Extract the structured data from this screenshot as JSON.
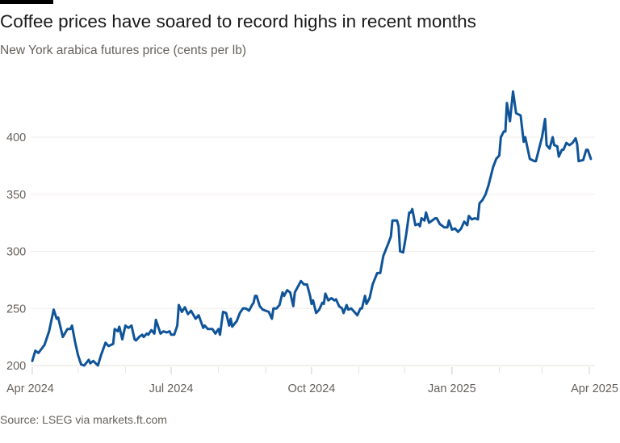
{
  "header": {
    "title": "Coffee prices have soared to record highs in recent months",
    "subtitle": "New York arabica futures price (cents per lb)"
  },
  "footer": {
    "source": "Source: LSEG via markets.ft.com"
  },
  "colors": {
    "line": "#0f5499",
    "grid": "#f0ece8",
    "text": "#66605c"
  },
  "chart_data": {
    "type": "line",
    "title": "Coffee prices have soared to record highs in recent months",
    "subtitle": "New York arabica futures price (cents per lb)",
    "xlabel": "",
    "ylabel": "",
    "xlim": [
      "2024-04-01",
      "2025-04-01"
    ],
    "ylim": [
      200,
      440
    ],
    "yticks": [
      200,
      250,
      300,
      350,
      400
    ],
    "xticks": [
      {
        "date": "2024-04-01",
        "label": "Apr 2024"
      },
      {
        "date": "2024-07-01",
        "label": "Jul 2024"
      },
      {
        "date": "2024-10-01",
        "label": "Oct 2024"
      },
      {
        "date": "2025-01-01",
        "label": "Jan 2025"
      },
      {
        "date": "2025-04-01",
        "label": "Apr 2025"
      }
    ],
    "minor_ticks": "monthly",
    "grid": "horizontal",
    "series": [
      {
        "points": [
          [
            "2024-04-01",
            204
          ],
          [
            "2024-04-03",
            213
          ],
          [
            "2024-04-05",
            211
          ],
          [
            "2024-04-09",
            218
          ],
          [
            "2024-04-12",
            230
          ],
          [
            "2024-04-15",
            249
          ],
          [
            "2024-04-17",
            241
          ],
          [
            "2024-04-18",
            242
          ],
          [
            "2024-04-21",
            225
          ],
          [
            "2024-04-24",
            232
          ],
          [
            "2024-04-26",
            232
          ],
          [
            "2024-04-27",
            235
          ],
          [
            "2024-04-29",
            221
          ],
          [
            "2024-05-01",
            209
          ],
          [
            "2024-05-03",
            201
          ],
          [
            "2024-05-05",
            200
          ],
          [
            "2024-05-08",
            205
          ],
          [
            "2024-05-09",
            202
          ],
          [
            "2024-05-11",
            204
          ],
          [
            "2024-05-14",
            200
          ],
          [
            "2024-05-16",
            209
          ],
          [
            "2024-05-19",
            220
          ],
          [
            "2024-05-21",
            217
          ],
          [
            "2024-05-24",
            219
          ],
          [
            "2024-05-25",
            232
          ],
          [
            "2024-05-27",
            230
          ],
          [
            "2024-05-28",
            234
          ],
          [
            "2024-05-30",
            223
          ],
          [
            "2024-06-01",
            235
          ],
          [
            "2024-06-03",
            233
          ],
          [
            "2024-06-05",
            235
          ],
          [
            "2024-06-07",
            223
          ],
          [
            "2024-06-08",
            222
          ],
          [
            "2024-06-10",
            225
          ],
          [
            "2024-06-12",
            227
          ],
          [
            "2024-06-13",
            225
          ],
          [
            "2024-06-15",
            228
          ],
          [
            "2024-06-16",
            227
          ],
          [
            "2024-06-18",
            231
          ],
          [
            "2024-06-20",
            228
          ],
          [
            "2024-06-21",
            240
          ],
          [
            "2024-06-24",
            228
          ],
          [
            "2024-06-26",
            230
          ],
          [
            "2024-06-28",
            229
          ],
          [
            "2024-06-30",
            230
          ],
          [
            "2024-07-01",
            227
          ],
          [
            "2024-07-03",
            227
          ],
          [
            "2024-07-05",
            235
          ],
          [
            "2024-07-06",
            253
          ],
          [
            "2024-07-08",
            247
          ],
          [
            "2024-07-10",
            251
          ],
          [
            "2024-07-12",
            245
          ],
          [
            "2024-07-14",
            248
          ],
          [
            "2024-07-17",
            241
          ],
          [
            "2024-07-19",
            244
          ],
          [
            "2024-07-22",
            233
          ],
          [
            "2024-07-23",
            235
          ],
          [
            "2024-07-25",
            232
          ],
          [
            "2024-07-28",
            232
          ],
          [
            "2024-07-30",
            228
          ],
          [
            "2024-08-01",
            232
          ],
          [
            "2024-08-02",
            227
          ],
          [
            "2024-08-04",
            247
          ],
          [
            "2024-08-06",
            246
          ],
          [
            "2024-08-08",
            235
          ],
          [
            "2024-08-09",
            241
          ],
          [
            "2024-08-10",
            234
          ],
          [
            "2024-08-13",
            239
          ],
          [
            "2024-08-15",
            246
          ],
          [
            "2024-08-17",
            250
          ],
          [
            "2024-08-19",
            250
          ],
          [
            "2024-08-21",
            248
          ],
          [
            "2024-08-23",
            253
          ],
          [
            "2024-08-24",
            255
          ],
          [
            "2024-08-25",
            261
          ],
          [
            "2024-08-26",
            261
          ],
          [
            "2024-08-28",
            252
          ],
          [
            "2024-08-30",
            249
          ],
          [
            "2024-09-01",
            248
          ],
          [
            "2024-09-03",
            247
          ],
          [
            "2024-09-05",
            241
          ],
          [
            "2024-09-06",
            250
          ],
          [
            "2024-09-08",
            250
          ],
          [
            "2024-09-10",
            253
          ],
          [
            "2024-09-12",
            264
          ],
          [
            "2024-09-13",
            261
          ],
          [
            "2024-09-15",
            266
          ],
          [
            "2024-09-17",
            264
          ],
          [
            "2024-09-19",
            252
          ],
          [
            "2024-09-20",
            264
          ],
          [
            "2024-09-22",
            269
          ],
          [
            "2024-09-24",
            274
          ],
          [
            "2024-09-26",
            271
          ],
          [
            "2024-09-28",
            271
          ],
          [
            "2024-09-30",
            261
          ],
          [
            "2024-10-01",
            254
          ],
          [
            "2024-10-02",
            257
          ],
          [
            "2024-10-04",
            246
          ],
          [
            "2024-10-06",
            249
          ],
          [
            "2024-10-08",
            255
          ],
          [
            "2024-10-09",
            254
          ],
          [
            "2024-10-10",
            263
          ],
          [
            "2024-10-12",
            257
          ],
          [
            "2024-10-14",
            259
          ],
          [
            "2024-10-16",
            257
          ],
          [
            "2024-10-17",
            258
          ],
          [
            "2024-10-19",
            252
          ],
          [
            "2024-10-21",
            250
          ],
          [
            "2024-10-22",
            246
          ],
          [
            "2024-10-24",
            253
          ],
          [
            "2024-10-25",
            249
          ],
          [
            "2024-10-27",
            250
          ],
          [
            "2024-10-31",
            244
          ],
          [
            "2024-11-02",
            250
          ],
          [
            "2024-11-03",
            250
          ],
          [
            "2024-11-05",
            261
          ],
          [
            "2024-11-06",
            254
          ],
          [
            "2024-11-08",
            259
          ],
          [
            "2024-11-10",
            271
          ],
          [
            "2024-11-13",
            281
          ],
          [
            "2024-11-15",
            281
          ],
          [
            "2024-11-17",
            296
          ],
          [
            "2024-11-20",
            306
          ],
          [
            "2024-11-22",
            313
          ],
          [
            "2024-11-23",
            327
          ],
          [
            "2024-11-26",
            327
          ],
          [
            "2024-11-27",
            322
          ],
          [
            "2024-11-28",
            300
          ],
          [
            "2024-11-30",
            299
          ],
          [
            "2024-12-02",
            315
          ],
          [
            "2024-12-04",
            334
          ],
          [
            "2024-12-05",
            334
          ],
          [
            "2024-12-06",
            337
          ],
          [
            "2024-12-08",
            323
          ],
          [
            "2024-12-10",
            324
          ],
          [
            "2024-12-11",
            322
          ],
          [
            "2024-12-12",
            329
          ],
          [
            "2024-12-14",
            327
          ],
          [
            "2024-12-15",
            334
          ],
          [
            "2024-12-17",
            325
          ],
          [
            "2024-12-19",
            327
          ],
          [
            "2024-12-21",
            329
          ],
          [
            "2024-12-22",
            329
          ],
          [
            "2024-12-24",
            324
          ],
          [
            "2024-12-27",
            321
          ],
          [
            "2024-12-29",
            321
          ],
          [
            "2024-12-30",
            327
          ],
          [
            "2025-01-01",
            319
          ],
          [
            "2025-01-03",
            320
          ],
          [
            "2025-01-05",
            317
          ],
          [
            "2025-01-07",
            320
          ],
          [
            "2025-01-09",
            326
          ],
          [
            "2025-01-11",
            323
          ],
          [
            "2025-01-12",
            331
          ],
          [
            "2025-01-14",
            328
          ],
          [
            "2025-01-16",
            329
          ],
          [
            "2025-01-18",
            328
          ],
          [
            "2025-01-19",
            342
          ],
          [
            "2025-01-21",
            345
          ],
          [
            "2025-01-23",
            350
          ],
          [
            "2025-01-25",
            358
          ],
          [
            "2025-01-28",
            374
          ],
          [
            "2025-01-30",
            381
          ],
          [
            "2025-02-01",
            384
          ],
          [
            "2025-02-02",
            400
          ],
          [
            "2025-02-04",
            405
          ],
          [
            "2025-02-05",
            405
          ],
          [
            "2025-02-06",
            430
          ],
          [
            "2025-02-08",
            414
          ],
          [
            "2025-02-10",
            440
          ],
          [
            "2025-02-12",
            421
          ],
          [
            "2025-02-15",
            419
          ],
          [
            "2025-02-17",
            396
          ],
          [
            "2025-02-18",
            400
          ],
          [
            "2025-02-21",
            381
          ],
          [
            "2025-02-24",
            379
          ],
          [
            "2025-02-25",
            379
          ],
          [
            "2025-03-01",
            400
          ],
          [
            "2025-03-03",
            416
          ],
          [
            "2025-03-04",
            393
          ],
          [
            "2025-03-06",
            390
          ],
          [
            "2025-03-08",
            400
          ],
          [
            "2025-03-09",
            393
          ],
          [
            "2025-03-11",
            392
          ],
          [
            "2025-03-12",
            383
          ],
          [
            "2025-03-14",
            389
          ],
          [
            "2025-03-15",
            389
          ],
          [
            "2025-03-17",
            395
          ],
          [
            "2025-03-19",
            393
          ],
          [
            "2025-03-21",
            395
          ],
          [
            "2025-03-23",
            399
          ],
          [
            "2025-03-24",
            394
          ],
          [
            "2025-03-25",
            379
          ],
          [
            "2025-03-28",
            380
          ],
          [
            "2025-03-30",
            389
          ],
          [
            "2025-03-31",
            389
          ],
          [
            "2025-04-02",
            381
          ]
        ]
      }
    ]
  }
}
